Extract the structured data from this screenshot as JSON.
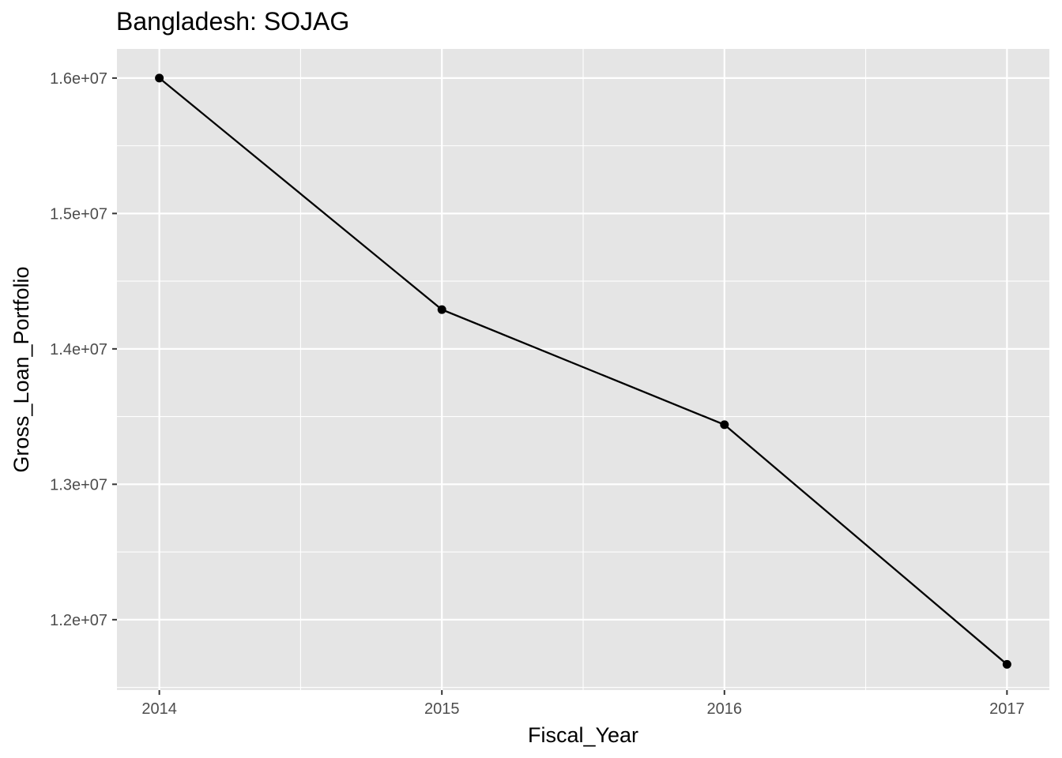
{
  "chart_data": {
    "type": "line",
    "title": "Bangladesh:  SOJAG",
    "xlabel": "Fiscal_Year",
    "ylabel": "Gross_Loan_Portfolio",
    "x": [
      2014,
      2015,
      2016,
      2017
    ],
    "x_tick_labels": [
      "2014",
      "2015",
      "2016",
      "2017"
    ],
    "series": [
      {
        "values": [
          16000000,
          14290000,
          13440000,
          11670000
        ]
      }
    ],
    "y_ticks": [
      12000000,
      13000000,
      14000000,
      15000000,
      16000000
    ],
    "y_tick_labels": [
      "1.2e+07",
      "1.3e+07",
      "1.4e+07",
      "1.5e+07",
      "1.6e+07"
    ],
    "xlim": [
      2013.85,
      2017.15
    ],
    "ylim": [
      11480000,
      16215000
    ],
    "grid": true,
    "colors": {
      "panel": "#e5e5e5",
      "grid": "#ffffff",
      "line": "#000000",
      "tick_text": "#4d4d4d"
    }
  }
}
